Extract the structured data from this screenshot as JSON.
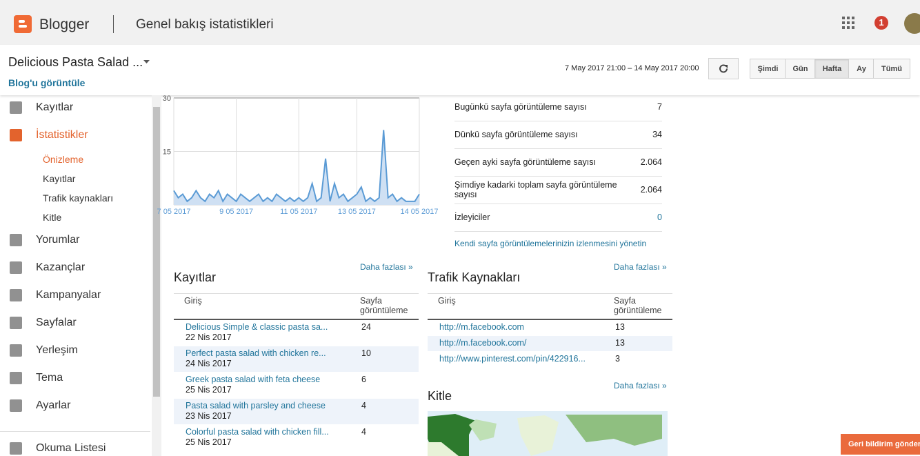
{
  "header": {
    "logo": "Blogger",
    "title": "Genel bakış istatistikleri",
    "notifications": "1"
  },
  "blog": {
    "name": "Delicious Pasta Salad ...",
    "view_link": "Blog'u görüntüle"
  },
  "range": {
    "text": "7 May 2017 21:00 – 14 May 2017 20:00",
    "buttons": [
      "Şimdi",
      "Gün",
      "Hafta",
      "Ay",
      "Tümü"
    ]
  },
  "sidebar": {
    "items": [
      "Kayıtlar",
      "İstatistikler",
      "Yorumlar",
      "Kazançlar",
      "Kampanyalar",
      "Sayfalar",
      "Yerleşim",
      "Tema",
      "Ayarlar",
      "Okuma Listesi"
    ],
    "subitems": [
      "Önizleme",
      "Kayıtlar",
      "Trafik kaynakları",
      "Kitle"
    ]
  },
  "chart_data": {
    "type": "line",
    "color": "#5b9bd5",
    "fill": "#cfe0f3",
    "values": [
      4,
      2,
      3,
      1,
      2,
      4,
      2,
      1,
      3,
      2,
      4,
      1,
      3,
      2,
      1,
      3,
      2,
      1,
      2,
      3,
      1,
      2,
      1,
      3,
      2,
      1,
      2,
      1,
      2,
      1,
      2,
      6,
      1,
      2,
      13,
      1,
      6,
      2,
      3,
      1,
      2,
      3,
      5,
      1,
      2,
      1,
      2,
      21,
      2,
      3,
      1,
      2,
      1,
      1,
      1,
      3
    ],
    "xlim": [
      0,
      55
    ],
    "xticks": [
      {
        "value": 0,
        "label": "7 05 2017"
      },
      {
        "value": 14,
        "label": "9 05 2017"
      },
      {
        "value": 28,
        "label": "11 05 2017"
      },
      {
        "value": 41,
        "label": "13 05 2017"
      },
      {
        "value": 55,
        "label": "14 05 2017"
      }
    ],
    "ylim": [
      0,
      30
    ],
    "yticks": [
      15,
      30
    ],
    "grid": true
  },
  "stats": {
    "rows": [
      [
        "Bugünkü sayfa görüntüleme sayısı",
        "7"
      ],
      [
        "Dünkü sayfa görüntüleme sayısı",
        "34"
      ],
      [
        "Geçen ayki sayfa görüntüleme sayısı",
        "2.064"
      ],
      [
        "Şimdiye kadarki toplam sayfa görüntüleme sayısı",
        "2.064"
      ],
      [
        "İzleyiciler",
        "0"
      ]
    ],
    "manage_link": "Kendi sayfa görüntülemelerinizin izlenmesini yönetin"
  },
  "posts": {
    "title": "Kayıtlar",
    "more": "Daha fazlası »",
    "headers": [
      "Giriş",
      "Sayfa görüntüleme"
    ],
    "rows": [
      [
        "Delicious Simple & classic pasta sa...",
        "22 Nis 2017",
        "24"
      ],
      [
        "Perfect pasta salad with chicken re...",
        "24 Nis 2017",
        "10"
      ],
      [
        "Greek pasta salad with feta cheese",
        "25 Nis 2017",
        "6"
      ],
      [
        "Pasta salad with parsley and cheese",
        "23 Nis 2017",
        "4"
      ],
      [
        "Colorful pasta salad with chicken fill...",
        "25 Nis 2017",
        "4"
      ]
    ]
  },
  "traffic": {
    "title": "Trafik Kaynakları",
    "more": "Daha fazlası »",
    "headers": [
      "Giriş",
      "Sayfa görüntüleme"
    ],
    "rows": [
      [
        "http://m.facebook.com",
        "13"
      ],
      [
        "http://m.facebook.com/",
        "13"
      ],
      [
        "http://www.pinterest.com/pin/422916...",
        "3"
      ]
    ]
  },
  "audience": {
    "title": "Kitle",
    "more": "Daha fazlası »"
  },
  "feedback": "Geri bildirim gönder"
}
